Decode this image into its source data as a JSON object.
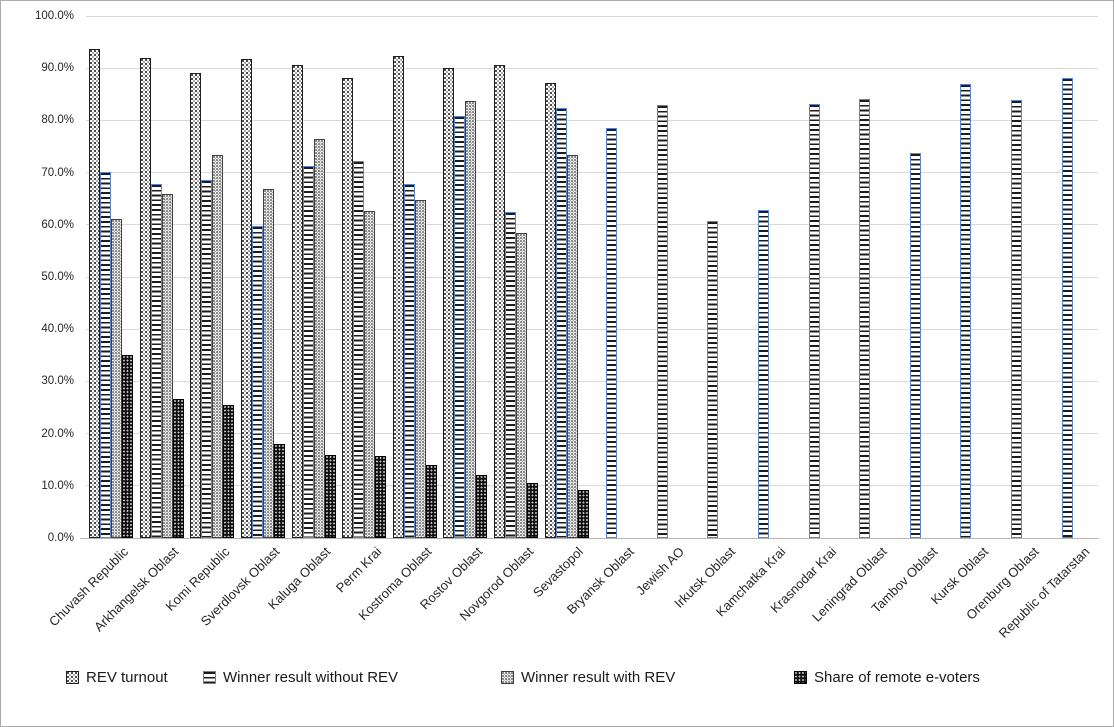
{
  "window": {
    "background": "#ffffff",
    "border_color": "#ababab"
  },
  "colors": {
    "gridline": "#d9d9d9",
    "axis_line": "#b5b5b5",
    "text": "#262626",
    "series2_outline_blue": "#5b87c9",
    "series1_outline": "#1f1f1f",
    "series3_outline": "#3f3f3f",
    "series4_fill": "#0e0e0e"
  },
  "chart_data": {
    "type": "bar",
    "title": "",
    "xlabel": "",
    "ylabel": "",
    "ylim": [
      0,
      100
    ],
    "ytick_step": 10,
    "ytick_labels_top_to_bottom": [
      "100.0%",
      "90.0%",
      "80.0%",
      "70.0%",
      "60.0%",
      "50.0%",
      "40.0%",
      "30.0%",
      "20.0%",
      "10.0%",
      "0.0%"
    ],
    "grid": true,
    "legend_position": "bottom",
    "categories": [
      "Chuvash Republic",
      "Arkhangelsk Oblast",
      "Komi Republic",
      "Sverdlovsk Oblast",
      "Kaluga Oblast",
      "Perm Krai",
      "Kostroma Oblast",
      "Rostov Oblast",
      "Novgorod Oblast",
      "Sevastopol",
      "Bryansk Oblast",
      "Jewish AO",
      "Irkutsk Oblast",
      "Kamchatka Krai",
      "Krasnodar Krai",
      "Leningrad Oblast",
      "Tambov Oblast",
      "Kursk Oblast",
      "Orenburg Oblast",
      "Republic of Tatarstan"
    ],
    "series": [
      {
        "name": "REV turnout",
        "pattern": "fine-black-dots-on-white",
        "values": [
          93.7,
          91.9,
          89.0,
          91.7,
          90.7,
          88.2,
          92.4,
          90.0,
          90.6,
          87.1,
          null,
          null,
          null,
          null,
          null,
          null,
          null,
          null,
          null,
          null
        ]
      },
      {
        "name": "Winner result without REV",
        "pattern": "horizontal-black-stripes-blue-outline",
        "values": [
          70.2,
          67.9,
          68.6,
          59.8,
          71.3,
          72.2,
          67.9,
          80.8,
          62.4,
          82.4,
          78.6,
          82.9,
          60.8,
          62.8,
          83.1,
          84.2,
          73.8,
          86.9,
          84.0,
          88.1
        ]
      },
      {
        "name": "Winner result with REV",
        "pattern": "gray-dots-on-white",
        "values": [
          61.2,
          66.0,
          73.3,
          66.8,
          76.5,
          62.6,
          64.8,
          83.7,
          58.5,
          73.4,
          null,
          null,
          null,
          null,
          null,
          null,
          null,
          null,
          null,
          null
        ]
      },
      {
        "name": "Share of remote e-voters",
        "pattern": "black-with-white-dots",
        "values": [
          35.1,
          26.7,
          25.4,
          18.1,
          15.9,
          15.8,
          14.0,
          12.0,
          10.5,
          9.3,
          null,
          null,
          null,
          null,
          null,
          null,
          null,
          null,
          null,
          null
        ]
      }
    ]
  }
}
